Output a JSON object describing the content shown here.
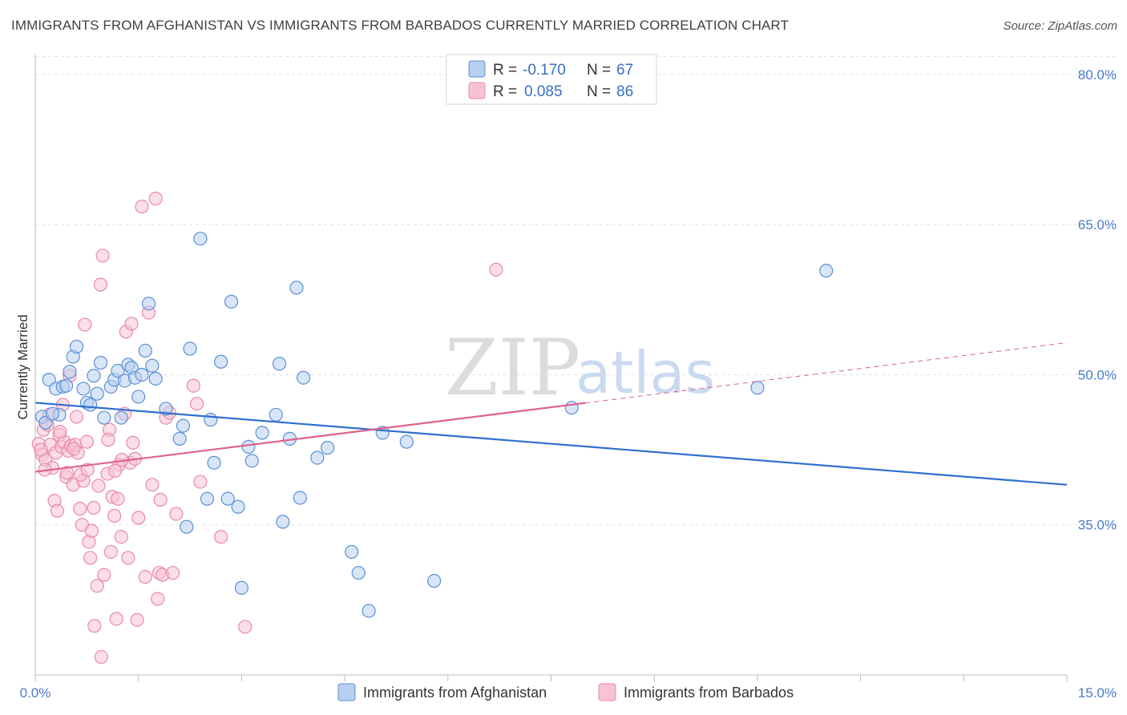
{
  "title": "IMMIGRANTS FROM AFGHANISTAN VS IMMIGRANTS FROM BARBADOS CURRENTLY MARRIED CORRELATION CHART",
  "source": "Source: ZipAtlas.com",
  "watermark": {
    "zip": "ZIP",
    "atlas": "atlas"
  },
  "colors": {
    "blue_fill": "#b8d0f0",
    "blue_stroke": "#5b8fd6",
    "blue_line": "#2f6fce",
    "pink_fill": "#f7c3d3",
    "pink_stroke": "#e88aa8",
    "pink_line": "#e0608c",
    "grid": "#e2e2e2",
    "tick_text": "#4a7cc9"
  },
  "legend": {
    "rows": [
      {
        "r_label": "R =",
        "r_value": "-0.170",
        "n_label": "N =",
        "n_value": "67",
        "color": "blue"
      },
      {
        "r_label": "R =",
        "r_value": "0.085",
        "n_label": "N =",
        "n_value": "86",
        "color": "pink"
      }
    ]
  },
  "chart_data": {
    "type": "scatter",
    "title": "IMMIGRANTS FROM AFGHANISTAN VS IMMIGRANTS FROM BARBADOS CURRENTLY MARRIED CORRELATION CHART",
    "xlabel": "",
    "ylabel": "Currently Married",
    "xlim": [
      0,
      15
    ],
    "ylim": [
      20,
      82
    ],
    "x_tick_labels": [
      "0.0%",
      "15.0%"
    ],
    "y_ticks": [
      35,
      50,
      65,
      80
    ],
    "y_tick_labels": [
      "35.0%",
      "50.0%",
      "65.0%",
      "80.0%"
    ],
    "grid": true,
    "legend_position": "top-center",
    "series": [
      {
        "name": "Immigrants from Afghanistan",
        "color": "blue",
        "trend": {
          "x": [
            0,
            15
          ],
          "y": [
            47.2,
            39.0
          ],
          "dashed_from": null
        },
        "points": [
          [
            0.1,
            45.8
          ],
          [
            0.15,
            45.2
          ],
          [
            0.2,
            49.5
          ],
          [
            0.3,
            48.6
          ],
          [
            0.35,
            46.0
          ],
          [
            0.4,
            48.8
          ],
          [
            0.5,
            50.3
          ],
          [
            0.55,
            51.8
          ],
          [
            0.6,
            52.8
          ],
          [
            0.7,
            48.6
          ],
          [
            0.75,
            47.2
          ],
          [
            0.8,
            47.0
          ],
          [
            0.85,
            49.9
          ],
          [
            0.9,
            48.1
          ],
          [
            0.95,
            51.2
          ],
          [
            1.0,
            45.7
          ],
          [
            1.1,
            48.8
          ],
          [
            1.15,
            49.5
          ],
          [
            1.2,
            50.4
          ],
          [
            1.25,
            45.7
          ],
          [
            1.3,
            49.4
          ],
          [
            1.35,
            51.0
          ],
          [
            1.4,
            50.7
          ],
          [
            1.45,
            49.7
          ],
          [
            1.5,
            47.8
          ],
          [
            1.55,
            50.0
          ],
          [
            1.6,
            52.4
          ],
          [
            1.65,
            57.1
          ],
          [
            1.7,
            50.9
          ],
          [
            1.75,
            49.6
          ],
          [
            1.9,
            46.6
          ],
          [
            2.1,
            43.6
          ],
          [
            2.15,
            44.9
          ],
          [
            2.2,
            34.8
          ],
          [
            2.25,
            52.6
          ],
          [
            2.4,
            63.6
          ],
          [
            2.5,
            37.6
          ],
          [
            2.55,
            45.5
          ],
          [
            2.6,
            41.2
          ],
          [
            2.7,
            51.3
          ],
          [
            2.8,
            37.6
          ],
          [
            2.85,
            57.3
          ],
          [
            2.95,
            36.8
          ],
          [
            3.0,
            28.7
          ],
          [
            3.1,
            42.8
          ],
          [
            3.15,
            41.4
          ],
          [
            3.3,
            44.2
          ],
          [
            3.5,
            46.0
          ],
          [
            3.55,
            51.1
          ],
          [
            3.6,
            35.3
          ],
          [
            3.7,
            43.6
          ],
          [
            3.8,
            58.7
          ],
          [
            3.85,
            37.7
          ],
          [
            3.9,
            49.7
          ],
          [
            4.1,
            41.7
          ],
          [
            4.25,
            42.7
          ],
          [
            4.6,
            32.3
          ],
          [
            4.7,
            30.2
          ],
          [
            4.85,
            26.4
          ],
          [
            5.05,
            44.2
          ],
          [
            5.4,
            43.3
          ],
          [
            5.8,
            29.4
          ],
          [
            7.8,
            46.7
          ],
          [
            10.5,
            48.7
          ],
          [
            11.5,
            60.4
          ],
          [
            0.25,
            46.1
          ],
          [
            0.45,
            48.9
          ]
        ]
      },
      {
        "name": "Immigrants from Barbados",
        "color": "pink",
        "trend": {
          "x": [
            0,
            15
          ],
          "y": [
            40.3,
            53.2
          ],
          "dashed_from": 8.0
        },
        "points": [
          [
            0.05,
            43.1
          ],
          [
            0.1,
            42.0
          ],
          [
            0.12,
            44.5
          ],
          [
            0.15,
            41.5
          ],
          [
            0.18,
            45.0
          ],
          [
            0.2,
            46.0
          ],
          [
            0.22,
            43.0
          ],
          [
            0.25,
            40.7
          ],
          [
            0.28,
            37.4
          ],
          [
            0.3,
            42.2
          ],
          [
            0.32,
            36.4
          ],
          [
            0.35,
            44.0
          ],
          [
            0.38,
            42.8
          ],
          [
            0.4,
            47.0
          ],
          [
            0.42,
            43.3
          ],
          [
            0.45,
            39.8
          ],
          [
            0.48,
            42.4
          ],
          [
            0.5,
            49.9
          ],
          [
            0.52,
            42.9
          ],
          [
            0.55,
            39.0
          ],
          [
            0.58,
            43.0
          ],
          [
            0.6,
            45.8
          ],
          [
            0.62,
            42.2
          ],
          [
            0.65,
            36.6
          ],
          [
            0.68,
            35.0
          ],
          [
            0.7,
            39.4
          ],
          [
            0.72,
            55.0
          ],
          [
            0.75,
            43.3
          ],
          [
            0.78,
            33.3
          ],
          [
            0.8,
            31.7
          ],
          [
            0.82,
            34.4
          ],
          [
            0.85,
            36.7
          ],
          [
            0.9,
            28.9
          ],
          [
            0.92,
            38.9
          ],
          [
            0.95,
            59.0
          ],
          [
            0.98,
            61.9
          ],
          [
            1.0,
            30.0
          ],
          [
            1.05,
            40.1
          ],
          [
            1.08,
            44.5
          ],
          [
            1.1,
            32.3
          ],
          [
            1.12,
            37.8
          ],
          [
            1.15,
            35.9
          ],
          [
            1.18,
            25.6
          ],
          [
            1.2,
            37.6
          ],
          [
            1.22,
            41.0
          ],
          [
            1.25,
            33.8
          ],
          [
            1.3,
            46.1
          ],
          [
            1.32,
            54.3
          ],
          [
            1.35,
            31.7
          ],
          [
            1.38,
            41.2
          ],
          [
            1.4,
            55.1
          ],
          [
            1.42,
            43.2
          ],
          [
            1.45,
            41.6
          ],
          [
            1.48,
            25.5
          ],
          [
            1.5,
            35.7
          ],
          [
            1.55,
            66.8
          ],
          [
            1.6,
            29.8
          ],
          [
            1.65,
            56.2
          ],
          [
            1.7,
            39.0
          ],
          [
            1.75,
            67.6
          ],
          [
            1.78,
            27.6
          ],
          [
            1.8,
            30.2
          ],
          [
            1.82,
            37.5
          ],
          [
            1.85,
            30.0
          ],
          [
            1.9,
            45.7
          ],
          [
            1.95,
            46.2
          ],
          [
            2.0,
            30.2
          ],
          [
            2.05,
            36.1
          ],
          [
            2.3,
            48.9
          ],
          [
            2.35,
            47.1
          ],
          [
            2.4,
            39.3
          ],
          [
            2.7,
            33.8
          ],
          [
            3.05,
            24.8
          ],
          [
            6.7,
            60.5
          ],
          [
            0.08,
            42.5
          ],
          [
            0.14,
            40.5
          ],
          [
            0.36,
            44.3
          ],
          [
            0.46,
            40.2
          ],
          [
            0.56,
            42.6
          ],
          [
            0.66,
            40.0
          ],
          [
            0.76,
            40.5
          ],
          [
            0.86,
            24.9
          ],
          [
            0.96,
            21.8
          ],
          [
            1.06,
            43.5
          ],
          [
            1.16,
            40.4
          ],
          [
            1.26,
            41.5
          ]
        ]
      }
    ]
  },
  "bottom_legend": [
    {
      "label": "Immigrants from Afghanistan",
      "color": "blue"
    },
    {
      "label": "Immigrants from Barbados",
      "color": "pink"
    }
  ]
}
